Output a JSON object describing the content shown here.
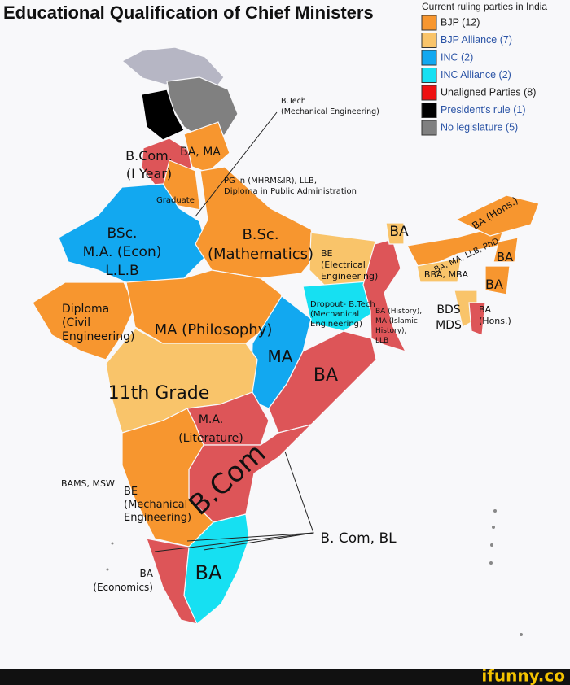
{
  "header": {
    "title": "Educational Qualification of Chief Ministers"
  },
  "legend": {
    "title": "Current ruling parties in India",
    "items": [
      {
        "label": "BJP (12)",
        "color": "#f7962f",
        "label_color": "#222222"
      },
      {
        "label": "BJP Alliance (7)",
        "color": "#f9c46a",
        "label_color": "#2b54a6"
      },
      {
        "label": "INC (2)",
        "color": "#12a8f0",
        "label_color": "#2b54a6"
      },
      {
        "label": "INC Alliance (2)",
        "color": "#16e0f2",
        "label_color": "#2b54a6"
      },
      {
        "label": "Unaligned Parties (8)",
        "color": "#ee1111",
        "label_color": "#222222"
      },
      {
        "label": "President's rule (1)",
        "color": "#000000",
        "label_color": "#2b54a6"
      },
      {
        "label": "No legislature (5)",
        "color": "#808080",
        "label_color": "#2b54a6"
      }
    ]
  },
  "map_labels": [
    {
      "lines": [
        "B.Com.",
        "(I Year)"
      ]
    },
    {
      "lines": [
        "BA, MA"
      ]
    },
    {
      "lines": [
        "PG in (MHRM&IR), LLB,",
        "Diploma in Public Administration"
      ]
    },
    {
      "lines": [
        "Graduate"
      ]
    },
    {
      "lines": [
        "BSc.",
        "M.A. (Econ)",
        "L.L.B"
      ]
    },
    {
      "lines": [
        "B.Sc.",
        "(Mathematics)"
      ]
    },
    {
      "lines": [
        "BA"
      ]
    },
    {
      "lines": [
        "BA (Hons.)"
      ]
    },
    {
      "lines": [
        "BA, MA, LLB, PhD"
      ]
    },
    {
      "lines": [
        "BA"
      ]
    },
    {
      "lines": [
        "BBA, MBA"
      ]
    },
    {
      "lines": [
        "BA"
      ]
    },
    {
      "lines": [
        "BDS",
        "MDS"
      ]
    },
    {
      "lines": [
        "BA",
        "(Hons.)"
      ]
    },
    {
      "lines": [
        "BE",
        "(Electrical",
        "Engineering)"
      ]
    },
    {
      "lines": [
        "Dropout- B.Tech",
        "(Mechanical",
        "Engineering)"
      ]
    },
    {
      "lines": [
        "BA (History),",
        "MA (Islamic",
        "History),",
        "LLB"
      ]
    },
    {
      "lines": [
        "Diploma",
        "(Civil",
        "Engineering)"
      ]
    },
    {
      "lines": [
        "MA (Philosophy)"
      ]
    },
    {
      "lines": [
        "MA"
      ]
    },
    {
      "lines": [
        "BA"
      ]
    },
    {
      "lines": [
        "11th Grade"
      ]
    },
    {
      "lines": [
        "M.A.",
        "(Literature)"
      ]
    },
    {
      "lines": [
        "B.Com"
      ]
    },
    {
      "lines": [
        "BAMS, MSW"
      ]
    },
    {
      "lines": [
        "BE",
        "(Mechanical",
        "Engineering)"
      ]
    },
    {
      "lines": [
        "B. Com, BL"
      ]
    },
    {
      "lines": [
        "BA",
        "(Economics)"
      ]
    },
    {
      "lines": [
        "BA"
      ]
    },
    {
      "lines": [
        "B.Tech",
        "(Mechanical Engineering)"
      ]
    }
  ],
  "footer": {
    "watermark": "ifunny.co"
  }
}
